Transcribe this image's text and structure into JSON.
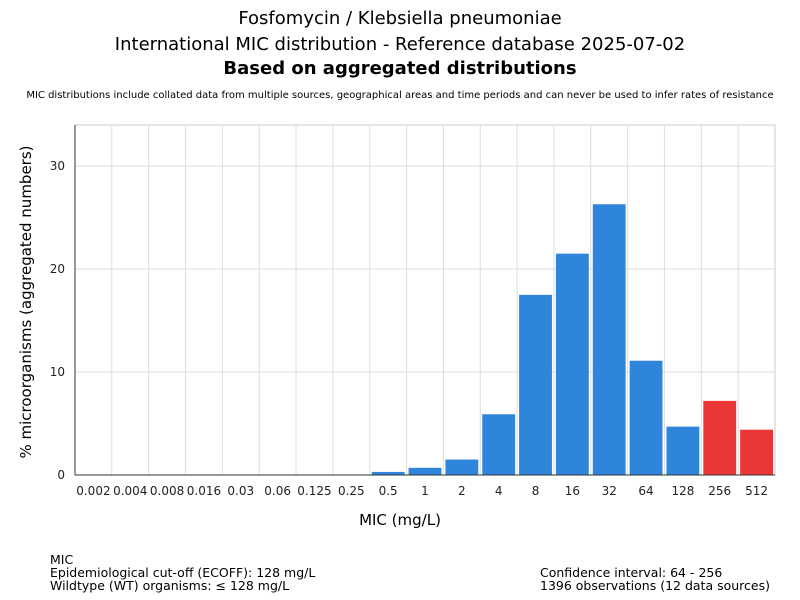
{
  "header": {
    "line1": "Fosfomycin / Klebsiella pneumoniae",
    "line2": "International MIC distribution - Reference database 2025-07-02",
    "line3": "Based on aggregated distributions",
    "subtitle": "MIC distributions include collated data from multiple sources, geographical areas and time periods and can never be used to infer rates of resistance"
  },
  "chart_data": {
    "type": "bar",
    "categories": [
      "0.002",
      "0.004",
      "0.008",
      "0.016",
      "0.03",
      "0.06",
      "0.125",
      "0.25",
      "0.5",
      "1",
      "2",
      "4",
      "8",
      "16",
      "32",
      "64",
      "128",
      "256",
      "512"
    ],
    "values": [
      0,
      0,
      0,
      0,
      0,
      0,
      0,
      0,
      0.3,
      0.7,
      1.5,
      5.9,
      17.5,
      21.5,
      26.3,
      11.1,
      4.7,
      7.2,
      4.4
    ],
    "colors": [
      "#2f85dc",
      "#2f85dc",
      "#2f85dc",
      "#2f85dc",
      "#2f85dc",
      "#2f85dc",
      "#2f85dc",
      "#2f85dc",
      "#2f85dc",
      "#2f85dc",
      "#2f85dc",
      "#2f85dc",
      "#2f85dc",
      "#2f85dc",
      "#2f85dc",
      "#2f85dc",
      "#2f85dc",
      "#ea3636",
      "#ea3636"
    ],
    "xlabel": "MIC (mg/L)",
    "ylabel": "% microorganisms (aggregated numbers)",
    "ylim": [
      0,
      34
    ],
    "yticks": [
      0,
      10,
      20,
      30
    ],
    "grid": true
  },
  "footer": {
    "left": [
      "MIC",
      "Epidemiological cut-off (ECOFF): 128 mg/L",
      "Wildtype (WT) organisms: ≤ 128 mg/L"
    ],
    "right": [
      "Confidence interval: 64 - 256",
      "1396 observations (12 data sources)"
    ]
  }
}
